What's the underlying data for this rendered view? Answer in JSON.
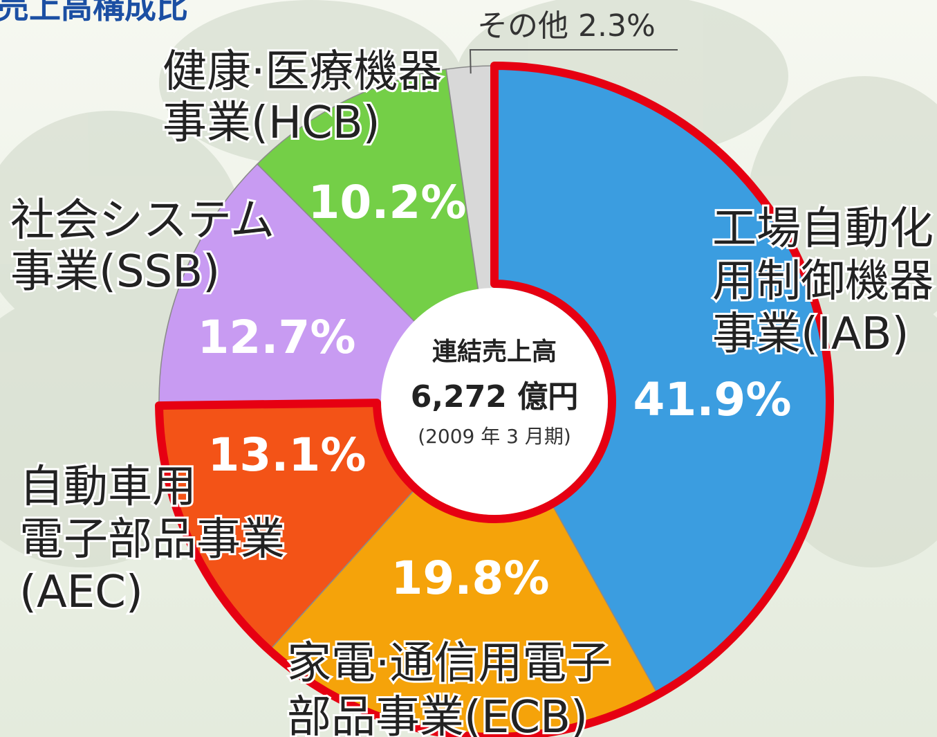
{
  "chart_data": {
    "type": "donut",
    "title": "売上高構成比",
    "categories": [
      "工場自動化\n用制御機器\n事業(IAB)",
      "家電·通信用電子\n部品事業(ECB)",
      "自動車用\n電子部品事業\n(AEC)",
      "社会システム\n事業(SSB)",
      "健康·医療機器\n事業(HCB)",
      "その他"
    ],
    "values": [
      41.9,
      19.8,
      13.1,
      12.7,
      10.2,
      2.3
    ],
    "value_labels": [
      "41.9%",
      "19.8%",
      "13.1%",
      "12.7%",
      "10.2%",
      "2.3%"
    ],
    "colors": [
      "#3b9de0",
      "#f5a30a",
      "#f35317",
      "#c89bf2",
      "#74cf47",
      "#d8d8d8"
    ],
    "highlight": {
      "color": "#e60012",
      "indices": [
        0,
        1,
        2
      ]
    },
    "center_text": [
      "連結売上高",
      "6,272 億円",
      "(2009 年 3 月期)"
    ]
  }
}
